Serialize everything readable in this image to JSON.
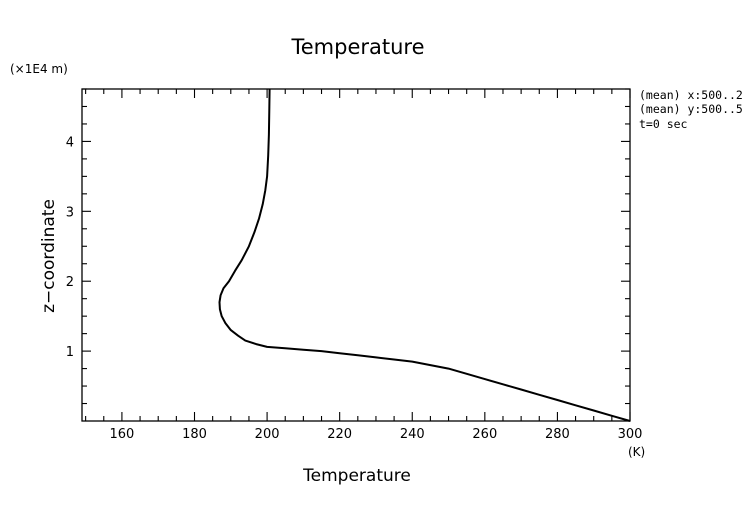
{
  "chart_data": {
    "type": "line",
    "title": "Temperature",
    "xlabel": "Temperature",
    "ylabel": "z−coordinate",
    "x_unit": "(K)",
    "y_unit": "(×1E4 m)",
    "xlim": [
      149,
      300
    ],
    "ylim": [
      0,
      4.75
    ],
    "x_ticks": [
      160,
      180,
      200,
      220,
      240,
      260,
      280,
      300
    ],
    "x_tick_labels": [
      "160",
      "180",
      "200",
      "220",
      "240",
      "260",
      "280",
      "300"
    ],
    "y_ticks": [
      1,
      2,
      3,
      4
    ],
    "y_tick_labels": [
      "1",
      "2",
      "3",
      "4"
    ],
    "grid": false,
    "annotations": [
      "(mean) x:500..2",
      "(mean) y:500..5",
      "t=0 sec"
    ],
    "series": [
      {
        "x": [
          300,
          295,
          290,
          285,
          280,
          275,
          270,
          265,
          260,
          255,
          250,
          245,
          240,
          235,
          230,
          225,
          220,
          215,
          210,
          205,
          200,
          197,
          194,
          192,
          190,
          188.5,
          187.5,
          187,
          186.9,
          187.2,
          188,
          189.5,
          191.2,
          193,
          195,
          196.5,
          197.8,
          198.8,
          199.5,
          200,
          200.3,
          200.5,
          200.6,
          200.7
        ],
        "y": [
          0,
          0.075,
          0.15,
          0.225,
          0.3,
          0.375,
          0.45,
          0.525,
          0.6,
          0.675,
          0.75,
          0.8,
          0.85,
          0.88,
          0.91,
          0.94,
          0.97,
          1.0,
          1.02,
          1.04,
          1.06,
          1.1,
          1.15,
          1.22,
          1.3,
          1.4,
          1.5,
          1.6,
          1.7,
          1.8,
          1.9,
          2.0,
          2.15,
          2.3,
          2.5,
          2.7,
          2.9,
          3.1,
          3.3,
          3.5,
          3.8,
          4.1,
          4.45,
          4.75
        ]
      }
    ]
  }
}
